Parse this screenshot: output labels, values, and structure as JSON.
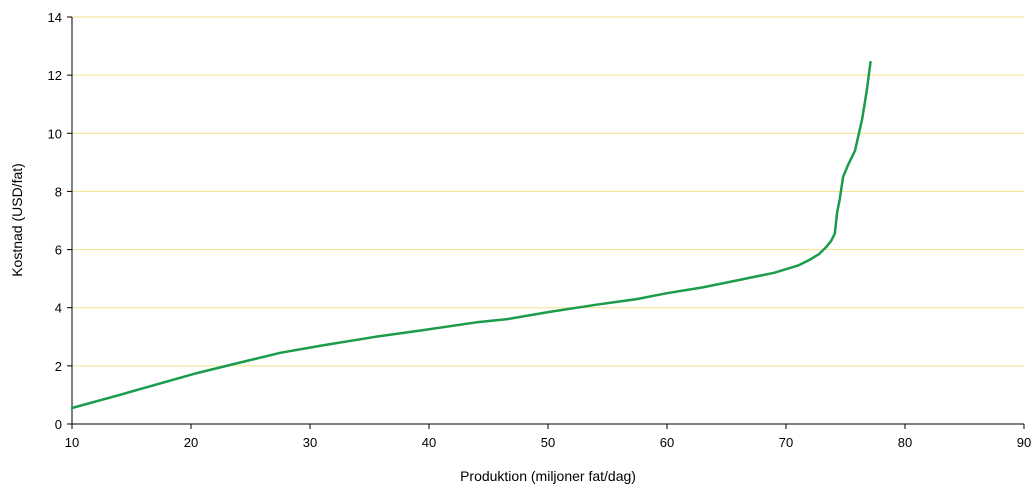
{
  "chart_data": {
    "type": "line",
    "title": "",
    "xlabel": "Produktion (miljoner fat/dag)",
    "ylabel": "Kostnad (USD/fat)",
    "xlim": [
      10,
      90
    ],
    "ylim": [
      0,
      14
    ],
    "x_ticks": [
      10,
      20,
      30,
      40,
      50,
      60,
      70,
      80,
      90
    ],
    "y_ticks": [
      0,
      2,
      4,
      6,
      8,
      10,
      12,
      14
    ],
    "grid": {
      "horizontal": true,
      "vertical": false,
      "color": "#f5e08a"
    },
    "legend": "none",
    "series": [
      {
        "color": "#1a9c4a",
        "x": [
          10,
          14,
          17,
          20.5,
          24,
          27.5,
          31,
          35.5,
          39,
          44,
          46.5,
          50,
          54,
          57.5,
          60,
          63,
          66,
          69,
          71,
          72,
          72.8,
          73.4,
          73.8,
          74.1,
          74.3,
          74.5,
          74.8,
          75.2,
          75.8,
          76.4,
          76.8,
          77.1
        ],
        "y": [
          0.55,
          1.0,
          1.35,
          1.75,
          2.1,
          2.45,
          2.7,
          3.0,
          3.2,
          3.5,
          3.6,
          3.85,
          4.1,
          4.3,
          4.5,
          4.7,
          4.95,
          5.2,
          5.45,
          5.65,
          5.85,
          6.1,
          6.3,
          6.55,
          7.3,
          7.7,
          8.5,
          8.9,
          9.4,
          10.5,
          11.5,
          12.45
        ]
      }
    ]
  }
}
